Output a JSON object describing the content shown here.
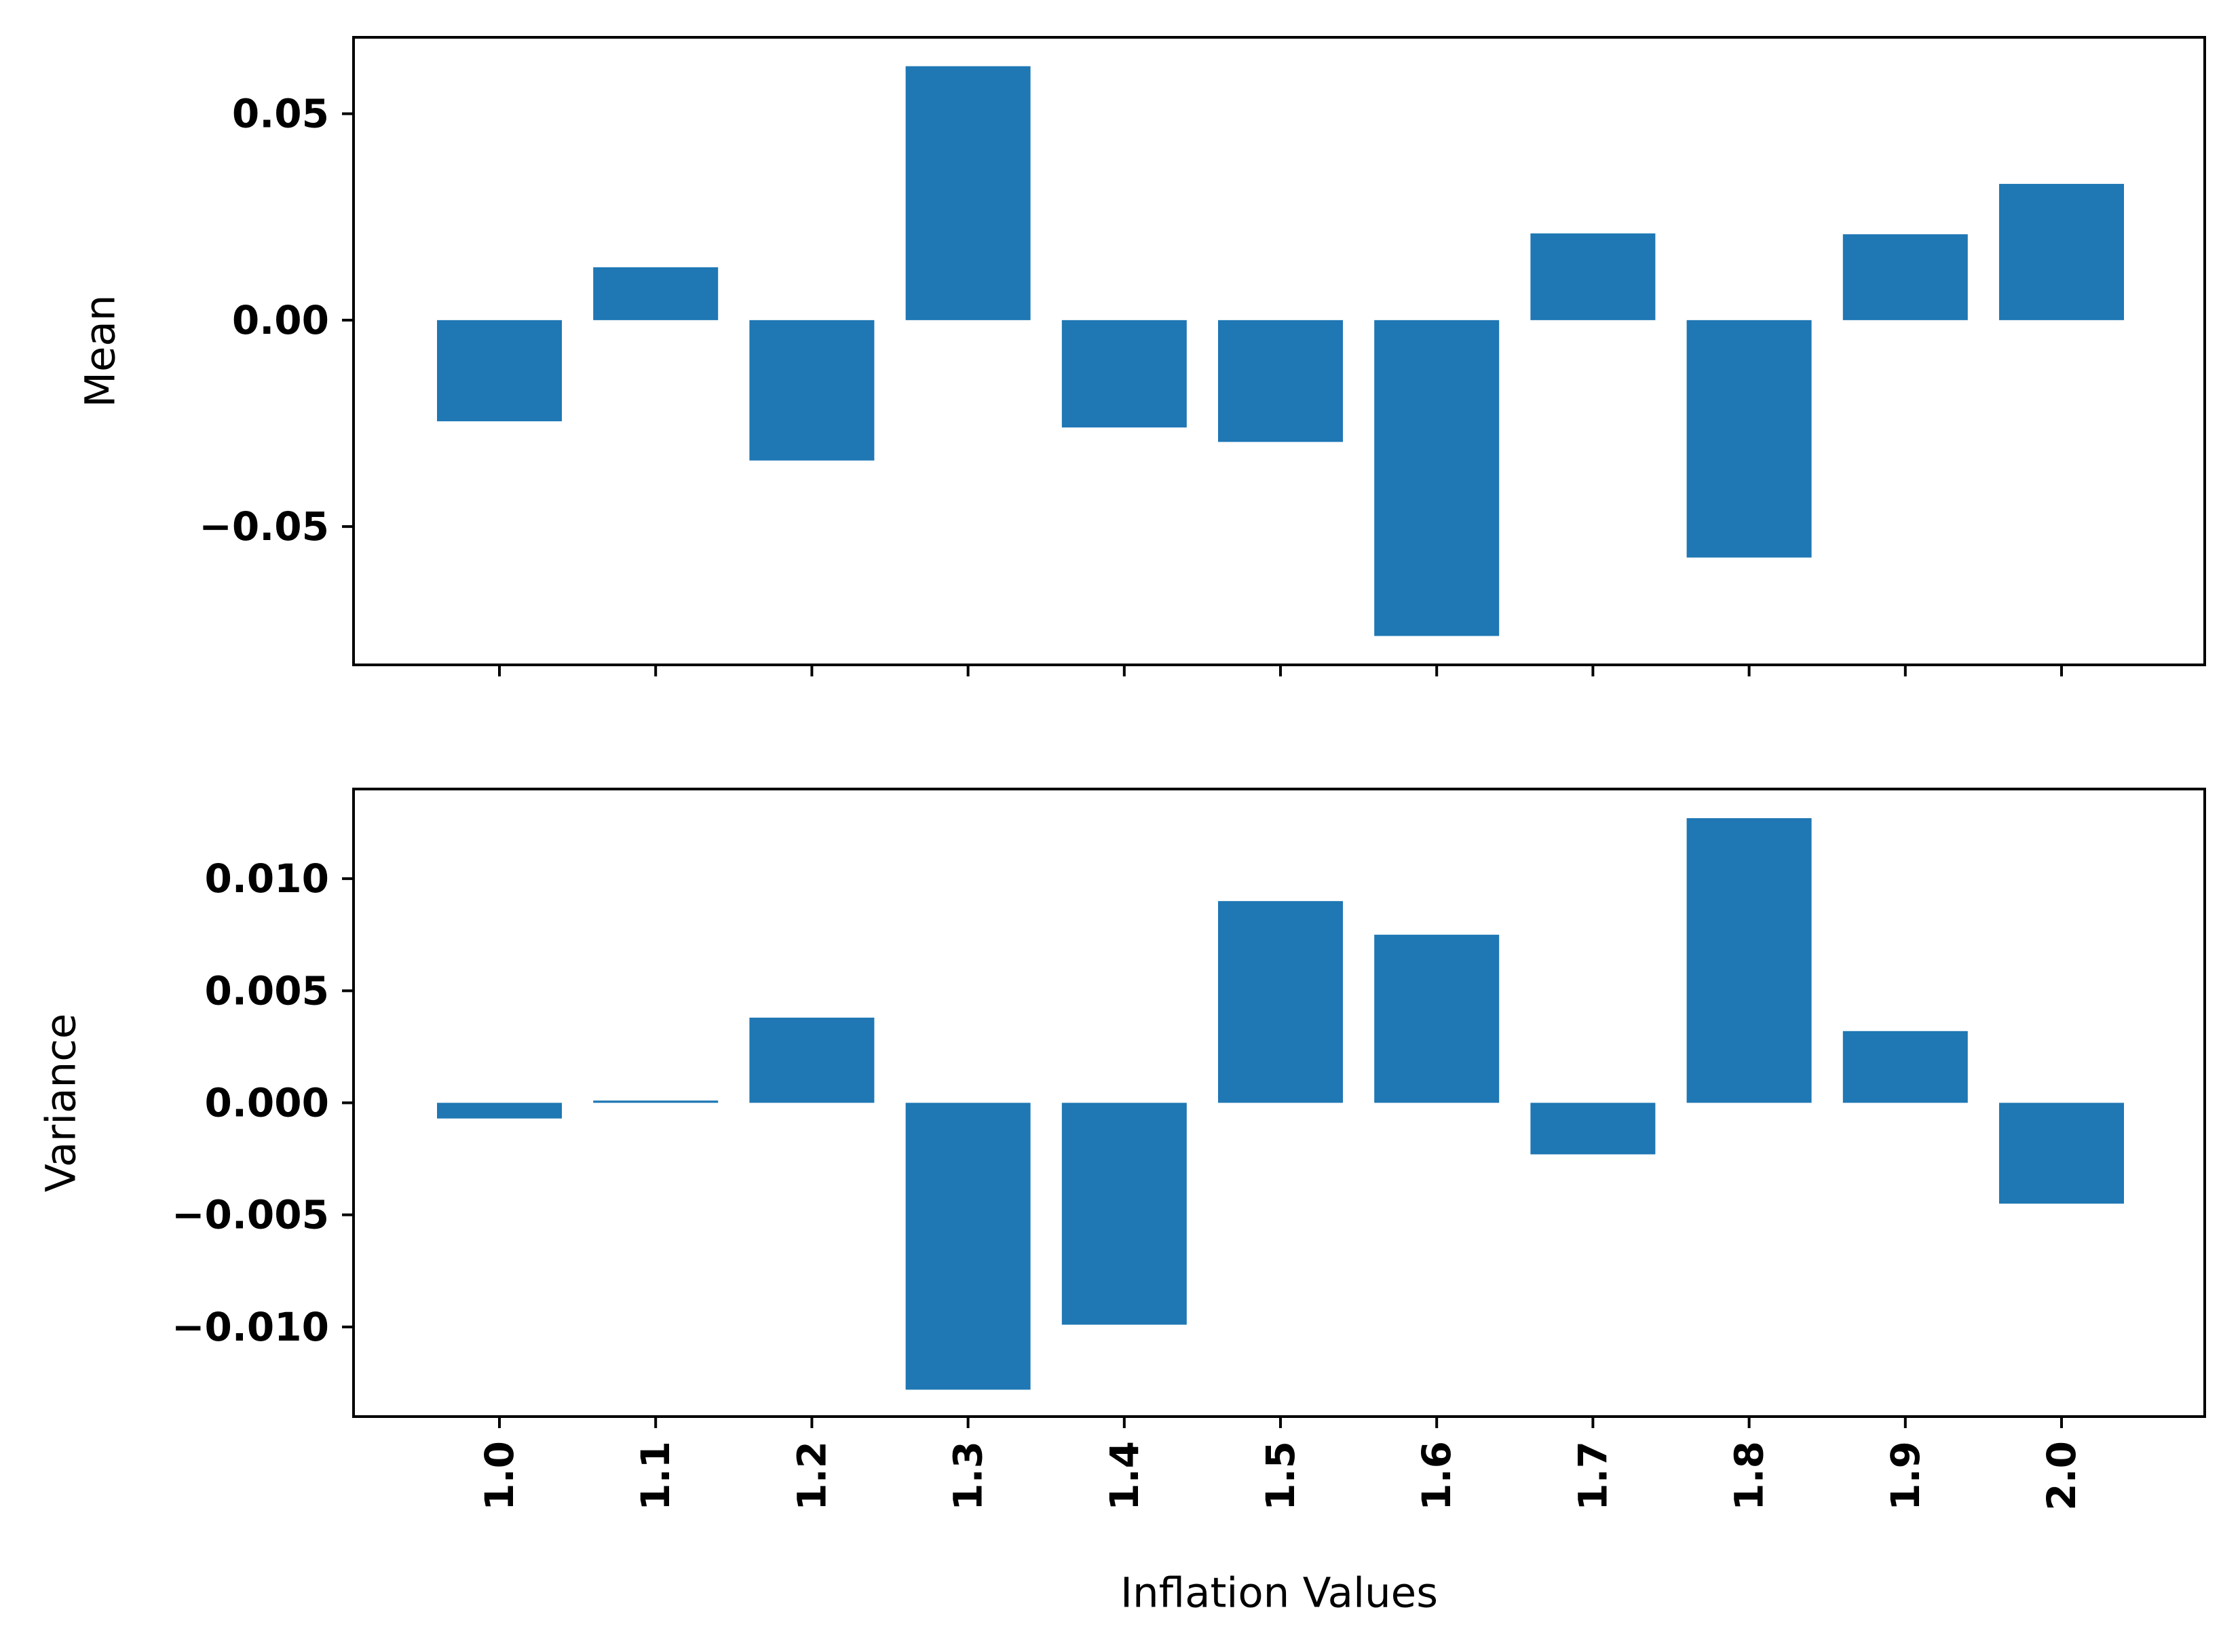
{
  "chart_data": [
    {
      "type": "bar",
      "ylabel": "Mean",
      "xlabel": "",
      "categories": [
        "1.0",
        "1.1",
        "1.2",
        "1.3",
        "1.4",
        "1.5",
        "1.6",
        "1.7",
        "1.8",
        "1.9",
        "2.0"
      ],
      "values": [
        -0.0245,
        0.0128,
        -0.034,
        0.0615,
        -0.026,
        -0.0295,
        -0.0765,
        0.021,
        -0.0575,
        0.0208,
        0.033
      ],
      "ylim": [
        -0.0835,
        0.0685
      ],
      "yticks": [
        -0.05,
        0.0,
        0.05
      ],
      "ytick_labels": [
        "−0.05",
        "0.00",
        "0.05"
      ],
      "show_xtick_labels": false,
      "color": "#1f77b4",
      "grid": false
    },
    {
      "type": "bar",
      "ylabel": "Variance",
      "xlabel": "Inflation Values",
      "categories": [
        "1.0",
        "1.1",
        "1.2",
        "1.3",
        "1.4",
        "1.5",
        "1.6",
        "1.7",
        "1.8",
        "1.9",
        "2.0"
      ],
      "values": [
        -0.0007,
        0.0001,
        0.0038,
        -0.0128,
        -0.0099,
        0.009,
        0.0075,
        -0.0023,
        0.0127,
        0.0032,
        -0.0045
      ],
      "ylim": [
        -0.014,
        0.014
      ],
      "yticks": [
        -0.01,
        -0.005,
        0.0,
        0.005,
        0.01
      ],
      "ytick_labels": [
        "−0.010",
        "−0.005",
        "0.000",
        "0.005",
        "0.010"
      ],
      "show_xtick_labels": true,
      "xtick_rotation": 90,
      "color": "#1f77b4",
      "grid": false
    }
  ]
}
